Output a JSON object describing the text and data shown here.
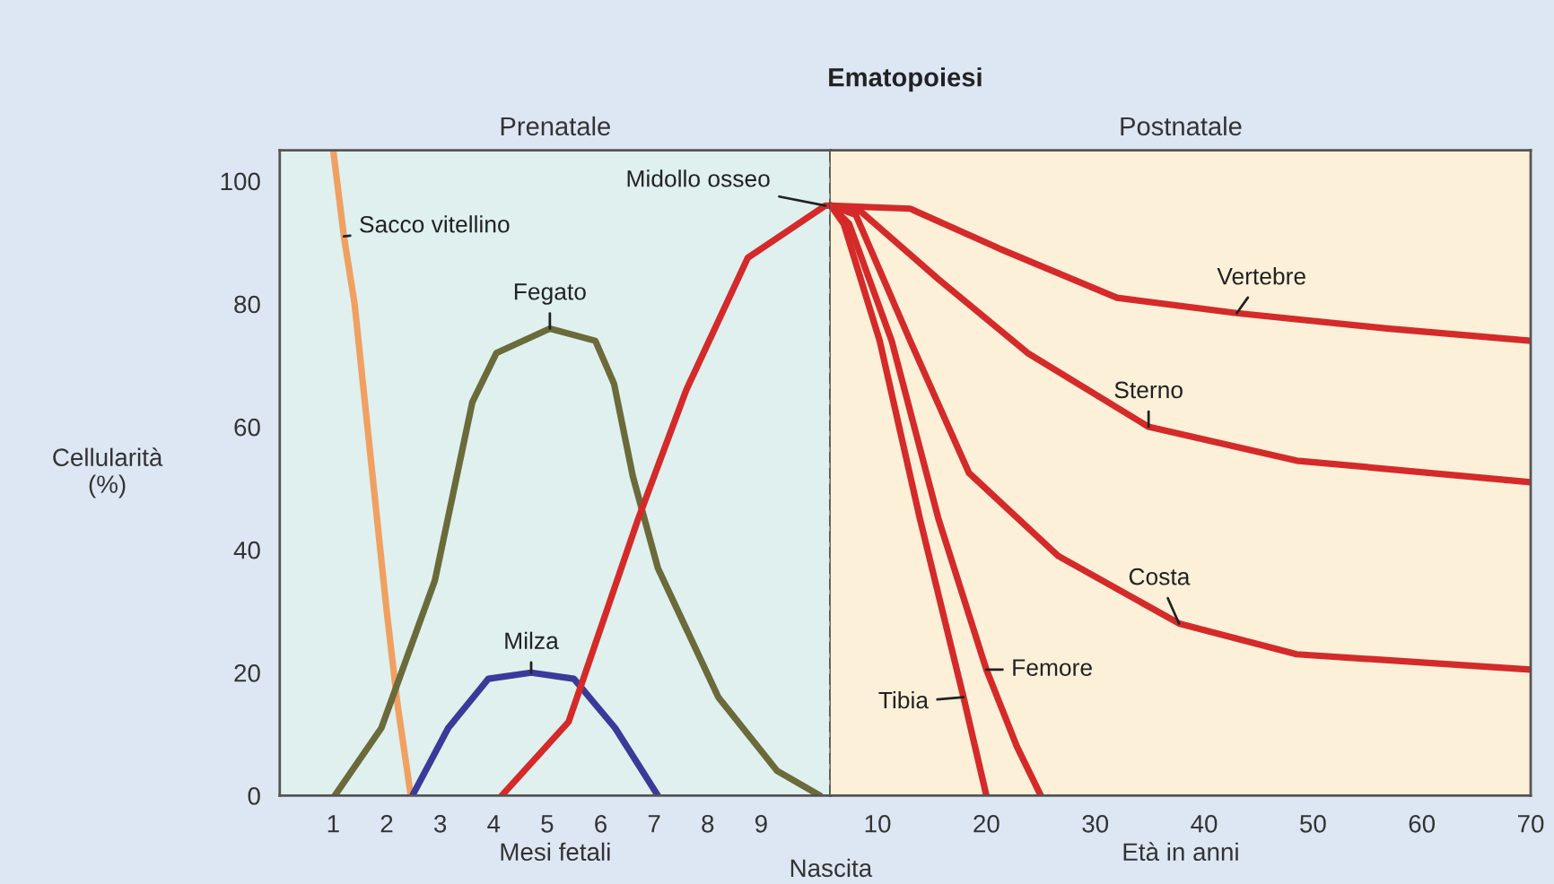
{
  "chart_data": [
    {
      "type": "line",
      "title": "Prenatale",
      "xlabel": "Mesi fetali",
      "ylabel": "Cellularità\n(%)",
      "annotations": [
        "Ematopoiesi"
      ],
      "xlim": [
        0,
        10.3
      ],
      "xticks": [
        1,
        2,
        3,
        4,
        5,
        6,
        7,
        8,
        9
      ],
      "ylim": [
        0,
        105
      ],
      "yticks": [
        0,
        20,
        40,
        60,
        80,
        100
      ],
      "grid": false,
      "legend": false,
      "ref_lines": [
        {
          "axis": "x",
          "value": 10.3,
          "label": "Nascita",
          "color": "#333333",
          "line_style": "dashed"
        }
      ],
      "series": [
        {
          "name": "Sacco vitellino",
          "color": "#f0a060",
          "x": [
            1.0,
            1.2,
            1.4,
            1.7,
            2.0,
            2.2,
            2.45
          ],
          "values": [
            105,
            91,
            80,
            55,
            30,
            15,
            0
          ]
        },
        {
          "name": "Fegato",
          "color": "#6b6a3a",
          "x": [
            1.03,
            1.9,
            2.9,
            3.6,
            4.05,
            5.05,
            5.9,
            6.25,
            6.6,
            7.07,
            8.2,
            9.3,
            10.1
          ],
          "values": [
            0,
            11,
            35,
            64,
            72,
            76,
            74,
            67,
            52,
            37,
            16,
            4,
            0
          ]
        },
        {
          "name": "Milza",
          "color": "#3a3a9a",
          "x": [
            2.48,
            3.15,
            3.9,
            4.7,
            5.5,
            6.27,
            7.07
          ],
          "values": [
            0,
            11,
            19,
            20,
            19,
            11,
            0
          ]
        },
        {
          "name": "Midollo osseo",
          "color": "#d42a2a",
          "x": [
            4.15,
            5.4,
            6.7,
            7.6,
            8.75,
            10.2,
            10.3
          ],
          "values": [
            0,
            12,
            45,
            66,
            87.5,
            96,
            96
          ]
        }
      ]
    },
    {
      "type": "line",
      "title": "Postnatale",
      "xlabel": "Età in anni",
      "tick_labels": "x",
      "xlim": [
        5.7,
        70
      ],
      "xticks": [
        10,
        20,
        30,
        40,
        50,
        60,
        70
      ],
      "ylim": [
        0,
        105
      ],
      "grid": false,
      "legend": false,
      "series": [
        {
          "name": "Vertebre",
          "color": "#d42a2a",
          "x": [
            5.7,
            13,
            21.2,
            32,
            43,
            56.8,
            70
          ],
          "values": [
            96,
            95.5,
            89,
            81,
            78.5,
            76,
            74
          ]
        },
        {
          "name": "Sterno",
          "color": "#d42a2a",
          "x": [
            5.7,
            8.5,
            15.6,
            23.8,
            34.9,
            48.5,
            70
          ],
          "values": [
            96,
            95,
            84,
            72,
            60,
            54.5,
            51
          ]
        },
        {
          "name": "Costa",
          "color": "#d42a2a",
          "x": [
            5.7,
            8,
            13,
            18.4,
            26.6,
            37.7,
            48.5,
            70
          ],
          "values": [
            96,
            94.5,
            74,
            52.5,
            39,
            28,
            23,
            20.5
          ]
        },
        {
          "name": "Femore",
          "color": "#d42a2a",
          "x": [
            5.7,
            7.4,
            11.3,
            15.6,
            20,
            22.8,
            25
          ],
          "values": [
            96,
            93,
            74,
            45,
            20.5,
            8,
            0
          ]
        },
        {
          "name": "Tibia",
          "color": "#d42a2a",
          "x": [
            5.7,
            6.9,
            10.2,
            13.9,
            17.9,
            20
          ],
          "values": [
            96,
            93,
            74,
            45,
            16,
            0
          ]
        }
      ]
    }
  ]
}
